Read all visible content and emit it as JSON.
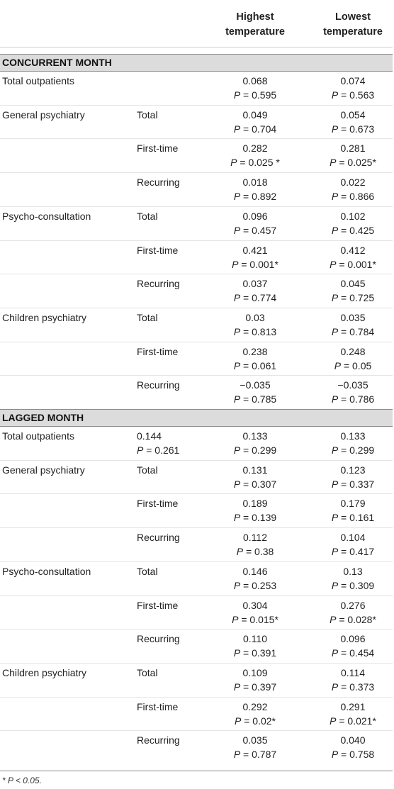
{
  "header": {
    "highest": [
      "Highest",
      "temperature"
    ],
    "lowest": [
      "Lowest",
      "temperature"
    ]
  },
  "sections": [
    {
      "title": "CONCURRENT MONTH",
      "rows": [
        {
          "label": "Total outpatients",
          "sub": "",
          "pre": [
            "",
            ""
          ],
          "hi": [
            "0.068",
            "P = 0.595"
          ],
          "lo": [
            "0.074",
            "P = 0.563"
          ]
        },
        {
          "label": "General psychiatry",
          "sub": "Total",
          "pre": [
            "",
            ""
          ],
          "hi": [
            "0.049",
            "P = 0.704"
          ],
          "lo": [
            "0.054",
            "P = 0.673"
          ]
        },
        {
          "label": "",
          "sub": "First-time",
          "pre": [
            "",
            ""
          ],
          "hi": [
            "0.282",
            "P = 0.025 *"
          ],
          "lo": [
            "0.281",
            "P = 0.025*"
          ]
        },
        {
          "label": "",
          "sub": "Recurring",
          "pre": [
            "",
            ""
          ],
          "hi": [
            "0.018",
            "P = 0.892"
          ],
          "lo": [
            "0.022",
            "P = 0.866"
          ]
        },
        {
          "label": "Psycho-consultation",
          "sub": "Total",
          "pre": [
            "",
            ""
          ],
          "hi": [
            "0.096",
            "P = 0.457"
          ],
          "lo": [
            "0.102",
            "P = 0.425"
          ]
        },
        {
          "label": "",
          "sub": "First-time",
          "pre": [
            "",
            ""
          ],
          "hi": [
            "0.421",
            "P = 0.001*"
          ],
          "lo": [
            "0.412",
            "P = 0.001*"
          ]
        },
        {
          "label": "",
          "sub": "Recurring",
          "pre": [
            "",
            ""
          ],
          "hi": [
            "0.037",
            "P = 0.774"
          ],
          "lo": [
            "0.045",
            "P = 0.725"
          ]
        },
        {
          "label": "Children psychiatry",
          "sub": "Total",
          "pre": [
            "",
            ""
          ],
          "hi": [
            "0.03",
            "P = 0.813"
          ],
          "lo": [
            "0.035",
            "P = 0.784"
          ]
        },
        {
          "label": "",
          "sub": "First-time",
          "pre": [
            "",
            ""
          ],
          "hi": [
            "0.238",
            "P = 0.061"
          ],
          "lo": [
            "0.248",
            "P = 0.05"
          ]
        },
        {
          "label": "",
          "sub": "Recurring",
          "pre": [
            "",
            ""
          ],
          "hi": [
            "−0.035",
            "P = 0.785"
          ],
          "lo": [
            "−0.035",
            "P = 0.786"
          ]
        }
      ]
    },
    {
      "title": "LAGGED MONTH",
      "rows": [
        {
          "label": "Total outpatients",
          "sub": "",
          "pre": [
            "0.144",
            "P = 0.261"
          ],
          "hi": [
            "0.133",
            "P = 0.299"
          ],
          "lo": [
            "0.133",
            "P = 0.299"
          ]
        },
        {
          "label": "General psychiatry",
          "sub": "Total",
          "pre": [
            "",
            ""
          ],
          "hi": [
            "0.131",
            "P = 0.307"
          ],
          "lo": [
            "0.123",
            "P = 0.337"
          ]
        },
        {
          "label": "",
          "sub": "First-time",
          "pre": [
            "",
            ""
          ],
          "hi": [
            "0.189",
            "P = 0.139"
          ],
          "lo": [
            "0.179",
            "P = 0.161"
          ]
        },
        {
          "label": "",
          "sub": "Recurring",
          "pre": [
            "",
            ""
          ],
          "hi": [
            "0.112",
            "P = 0.38"
          ],
          "lo": [
            "0.104",
            "P = 0.417"
          ]
        },
        {
          "label": "Psycho-consultation",
          "sub": "Total",
          "pre": [
            "",
            ""
          ],
          "hi": [
            "0.146",
            "P = 0.253"
          ],
          "lo": [
            "0.13",
            "P = 0.309"
          ]
        },
        {
          "label": "",
          "sub": "First-time",
          "pre": [
            "",
            ""
          ],
          "hi": [
            "0.304",
            "P = 0.015*"
          ],
          "lo": [
            "0.276",
            "P = 0.028*"
          ]
        },
        {
          "label": "",
          "sub": "Recurring",
          "pre": [
            "",
            ""
          ],
          "hi": [
            "0.110",
            "P = 0.391"
          ],
          "lo": [
            "0.096",
            "P = 0.454"
          ]
        },
        {
          "label": "Children psychiatry",
          "sub": "Total",
          "pre": [
            "",
            ""
          ],
          "hi": [
            "0.109",
            "P = 0.397"
          ],
          "lo": [
            "0.114",
            "P = 0.373"
          ]
        },
        {
          "label": "",
          "sub": "First-time",
          "pre": [
            "",
            ""
          ],
          "hi": [
            "0.292",
            "P = 0.02*"
          ],
          "lo": [
            "0.291",
            "P = 0.021*"
          ]
        },
        {
          "label": "",
          "sub": "Recurring",
          "pre": [
            "",
            ""
          ],
          "hi": [
            "0.035",
            "P = 0.787"
          ],
          "lo": [
            "0.040",
            "P = 0.758"
          ]
        }
      ]
    }
  ],
  "footnote": "* P < 0.05."
}
